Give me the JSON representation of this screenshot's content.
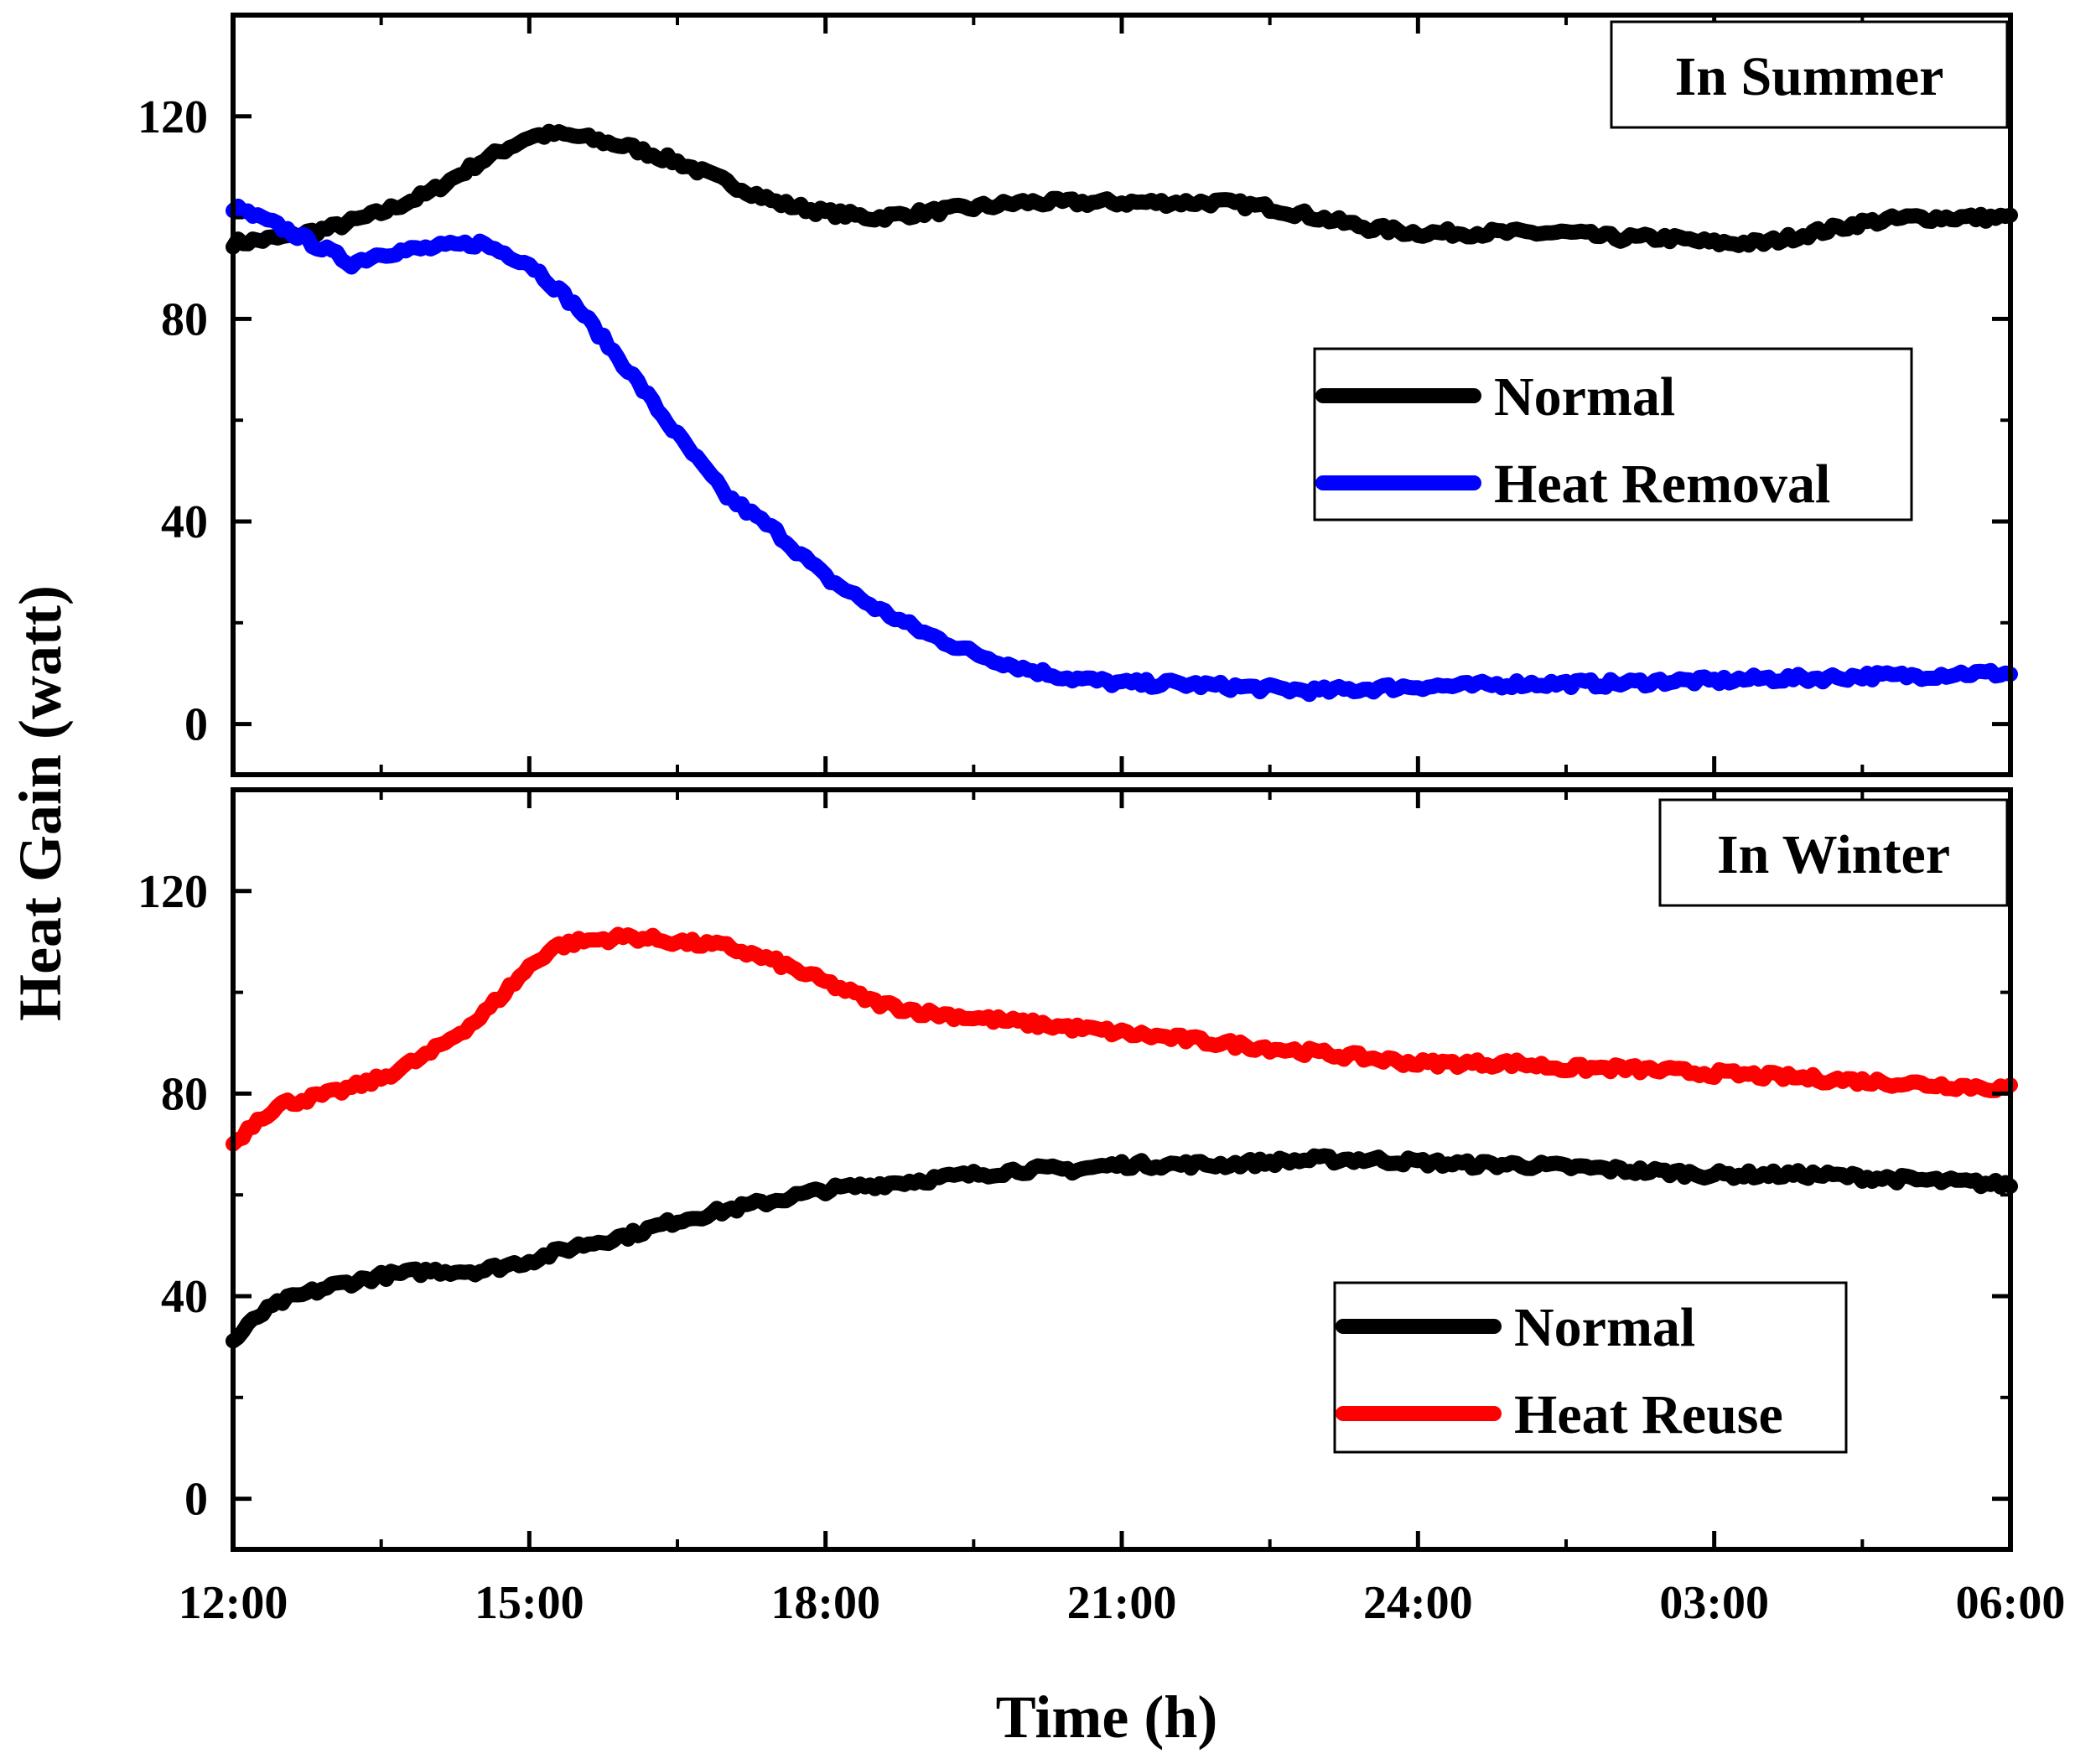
{
  "chart_data": [
    {
      "type": "line",
      "panel_label": "In Summer",
      "xlabel": "Time (h)",
      "ylabel": "Heat Gain (watt)",
      "xlim": [
        0,
        18
      ],
      "ylim": [
        -10,
        140
      ],
      "y_ticks": [
        0,
        40,
        80,
        120
      ],
      "x_ticks": [
        0,
        3,
        6,
        9,
        12,
        15,
        18
      ],
      "x_tick_labels": [
        "12:00",
        "15:00",
        "18:00",
        "21:00",
        "24:00",
        "03:00",
        "06:00"
      ],
      "legend_position": "right-middle",
      "series": [
        {
          "name": "Normal",
          "color": "#000000",
          "x": [
            0,
            0.5,
            1,
            1.5,
            2,
            2.5,
            3,
            3.25,
            3.5,
            4,
            4.5,
            5,
            5.5,
            6,
            6.5,
            7,
            7.5,
            8,
            8.5,
            9,
            9.5,
            10,
            10.5,
            11,
            11.5,
            12,
            12.5,
            13,
            13.5,
            14,
            14.5,
            15,
            15.5,
            16,
            16.5,
            17,
            17.5,
            18
          ],
          "values": [
            95,
            96,
            98,
            101,
            105,
            111,
            116,
            116.5,
            116,
            114,
            111,
            107,
            103,
            101,
            100,
            101,
            102,
            103,
            103,
            103,
            103,
            103,
            102,
            100,
            98,
            97,
            97,
            97,
            97,
            96,
            96,
            95,
            95,
            97,
            99,
            100,
            100,
            100
          ]
        },
        {
          "name": "Heat Removal",
          "color": "#0000ff",
          "x": [
            0,
            0.5,
            1,
            1.2,
            1.5,
            2,
            2.5,
            3,
            3.5,
            4,
            4.5,
            5,
            5.5,
            6,
            6.5,
            7,
            7.5,
            8,
            8.5,
            9,
            9.5,
            10,
            10.5,
            11,
            11.5,
            12,
            12.5,
            13,
            13.5,
            14,
            14.5,
            15,
            15.5,
            16,
            16.5,
            17,
            17.5,
            18
          ],
          "values": [
            102,
            98,
            93,
            91,
            93,
            94,
            95,
            91,
            82,
            70,
            57,
            45,
            38,
            29,
            23,
            18,
            14,
            11,
            9,
            8,
            8,
            7.5,
            7,
            6.5,
            7,
            7.5,
            7.5,
            8,
            8,
            8,
            8.5,
            8.5,
            9,
            9,
            9.5,
            9.5,
            10,
            10
          ]
        }
      ]
    },
    {
      "type": "line",
      "panel_label": "In Winter",
      "xlabel": "Time (h)",
      "ylabel": "Heat Gain (watt)",
      "xlim": [
        0,
        18
      ],
      "ylim": [
        -10,
        140
      ],
      "y_ticks": [
        0,
        40,
        80,
        120
      ],
      "x_ticks": [
        0,
        3,
        6,
        9,
        12,
        15,
        18
      ],
      "x_tick_labels": [
        "12:00",
        "15:00",
        "18:00",
        "21:00",
        "24:00",
        "03:00",
        "06:00"
      ],
      "legend_position": "bottom-right",
      "series": [
        {
          "name": "Normal",
          "color": "#000000",
          "x": [
            0,
            0.25,
            0.5,
            1,
            1.5,
            2,
            2.5,
            3,
            3.5,
            4,
            4.5,
            5,
            5.5,
            6,
            6.5,
            7,
            7.5,
            8,
            8.5,
            9,
            9.5,
            10,
            10.5,
            11,
            11.5,
            12,
            12.5,
            13,
            13.5,
            14,
            14.5,
            15,
            15.5,
            16,
            16.5,
            17,
            17.5,
            18
          ],
          "values": [
            31,
            36,
            39,
            42,
            44,
            45,
            45,
            47,
            50,
            52,
            55,
            57,
            59,
            61,
            62,
            63,
            64,
            65,
            65,
            66,
            66,
            66,
            66.5,
            67,
            67,
            66.5,
            66,
            66,
            65.5,
            65,
            64.5,
            64,
            64,
            64,
            63.5,
            63,
            62.5,
            62
          ]
        },
        {
          "name": "Heat Reuse",
          "color": "#ff0000",
          "x": [
            0,
            0.25,
            0.5,
            1,
            1.5,
            2,
            2.5,
            3,
            3.25,
            3.5,
            4,
            4.5,
            5,
            5.5,
            6,
            6.5,
            7,
            7.5,
            8,
            8.5,
            9,
            9.5,
            10,
            10.5,
            11,
            11.5,
            12,
            12.5,
            13,
            13.5,
            14,
            14.5,
            15,
            15.5,
            16,
            16.5,
            17,
            17.5,
            18
          ],
          "values": [
            70,
            75,
            78,
            80,
            83,
            88,
            95,
            105,
            109,
            110,
            111,
            110,
            109,
            106,
            102,
            98,
            96,
            95,
            94,
            93,
            92,
            91,
            90,
            89,
            88,
            87,
            86,
            86,
            86,
            85,
            85,
            84.5,
            84,
            83.5,
            83,
            82.5,
            82,
            81.5,
            81
          ]
        }
      ]
    }
  ]
}
